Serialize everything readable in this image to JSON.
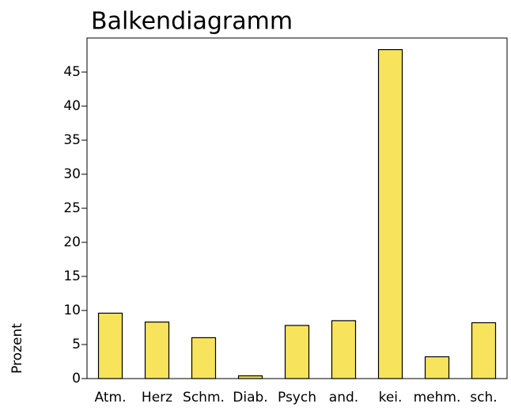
{
  "chart_data": {
    "type": "bar",
    "title": "Balkendiagramm",
    "y_label": "Prozent",
    "categories": [
      "Atm.",
      "Herz",
      "Schm.",
      "Diab.",
      "Psych",
      "and.",
      "kei.",
      "mehm.",
      "sch."
    ],
    "values": [
      9.6,
      8.3,
      6.0,
      0.4,
      7.8,
      8.5,
      48.3,
      3.2,
      8.2
    ],
    "color": "#f8e45c",
    "ylim": [
      0,
      50
    ],
    "yticks": [
      0,
      5,
      10,
      15,
      20,
      25,
      30,
      35,
      40,
      45
    ],
    "grid": false
  }
}
